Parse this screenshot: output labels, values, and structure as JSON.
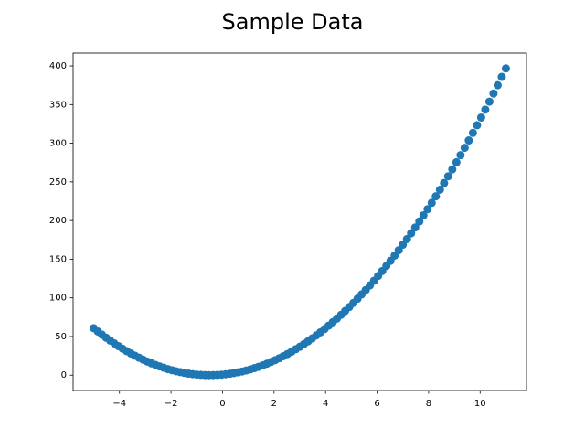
{
  "chart_data": {
    "type": "scatter",
    "title": "Sample Data",
    "color": "#1f77b4",
    "x": [
      -5,
      -4.84,
      -4.68,
      -4.52,
      -4.36,
      -4.2,
      -4.04,
      -3.88,
      -3.72,
      -3.56,
      -3.4,
      -3.24,
      -3.08,
      -2.92,
      -2.76,
      -2.6,
      -2.44,
      -2.28,
      -2.12,
      -1.96,
      -1.8,
      -1.64,
      -1.48,
      -1.32,
      -1.16,
      -1,
      -0.84,
      -0.68,
      -0.52,
      -0.36,
      -0.2,
      -0.04,
      0.12,
      0.28,
      0.44,
      0.6,
      0.76,
      0.92,
      1.08,
      1.24,
      1.4,
      1.56,
      1.72,
      1.88,
      2.04,
      2.2,
      2.36,
      2.52,
      2.68,
      2.84,
      3,
      3.16,
      3.32,
      3.48,
      3.64,
      3.8,
      3.96,
      4.12,
      4.28,
      4.44,
      4.6,
      4.76,
      4.92,
      5.08,
      5.24,
      5.4,
      5.56,
      5.72,
      5.88,
      6.04,
      6.2,
      6.36,
      6.52,
      6.68,
      6.84,
      7,
      7.16,
      7.32,
      7.48,
      7.64,
      7.8,
      7.96,
      8.12,
      8.28,
      8.44,
      8.6,
      8.76,
      8.92,
      9.08,
      9.24,
      9.4,
      9.56,
      9.72,
      9.88,
      10.04,
      10.2,
      10.36,
      10.52,
      10.68,
      10.84,
      11
    ],
    "values": [
      60.75,
      56.51,
      52.42,
      48.48,
      44.7,
      41.07,
      37.59,
      34.27,
      31.11,
      28.09,
      25.23,
      22.52,
      19.97,
      17.57,
      15.32,
      13.23,
      11.29,
      9.51,
      7.87,
      6.39,
      5.07,
      3.9,
      2.88,
      2.02,
      1.31,
      0.75,
      0.35,
      0.1,
      0,
      0.06,
      0.27,
      0.63,
      1.15,
      1.83,
      2.65,
      3.63,
      4.76,
      6.05,
      7.49,
      9.08,
      10.83,
      12.73,
      14.79,
      16.99,
      19.35,
      21.87,
      24.54,
      27.36,
      30.34,
      33.47,
      36.75,
      40.19,
      43.78,
      47.52,
      51.42,
      55.47,
      59.67,
      64.03,
      68.55,
      73.21,
      78.03,
      83,
      88.13,
      93.41,
      98.84,
      104.43,
      110.17,
      116.07,
      122.11,
      128.31,
      134.67,
      141.18,
      147.84,
      154.66,
      161.63,
      168.75,
      176.03,
      183.46,
      191.04,
      198.78,
      206.67,
      214.71,
      222.91,
      231.27,
      239.77,
      248.43,
      257.24,
      266.21,
      275.33,
      284.6,
      294.03,
      303.61,
      313.35,
      323.23,
      333.27,
      343.47,
      353.82,
      364.32,
      374.98,
      385.79,
      396.75
    ],
    "xlim": [
      -5.8,
      11.8
    ],
    "xticks": [
      {
        "value": -4,
        "label": "−4"
      },
      {
        "value": -2,
        "label": "−2"
      },
      0,
      2,
      4,
      6,
      8,
      10
    ],
    "ylim": [
      -19.84,
      416.59
    ],
    "yticks": [
      0,
      50,
      100,
      150,
      200,
      250,
      300,
      350,
      400
    ],
    "grid": false
  }
}
